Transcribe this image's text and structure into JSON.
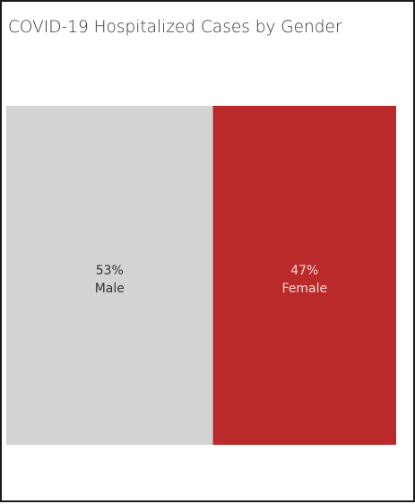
{
  "chart_data": {
    "type": "bar",
    "subtype": "100%-stacked-treemap",
    "title": "COVID-19 Hospitalized Cases by Gender",
    "categories": [
      "Male",
      "Female"
    ],
    "values": [
      53,
      47
    ],
    "value_labels": [
      "53%",
      "47%"
    ],
    "colors": [
      "#d3d3d3",
      "#bb2a2a"
    ],
    "label_colors": [
      "#333333",
      "#f2d9d9"
    ],
    "xlabel": "",
    "ylabel": "",
    "grid": false,
    "legend": "none"
  }
}
